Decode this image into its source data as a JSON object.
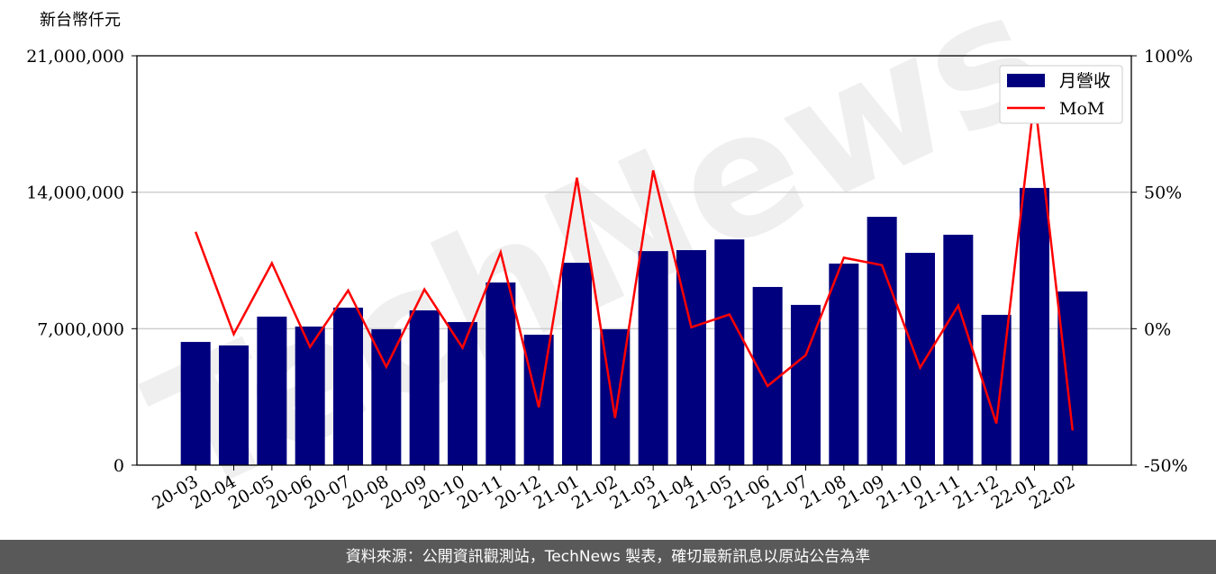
{
  "chart_data": {
    "type": "bar-line",
    "y_label": "新台幣仟元",
    "watermark": "TechNews",
    "categories": [
      "20-03",
      "20-04",
      "20-05",
      "20-06",
      "20-07",
      "20-08",
      "20-09",
      "20-10",
      "20-11",
      "20-12",
      "21-01",
      "21-02",
      "21-03",
      "21-04",
      "21-05",
      "21-06",
      "21-07",
      "21-08",
      "21-09",
      "21-10",
      "21-11",
      "21-12",
      "22-01",
      "22-02"
    ],
    "series": [
      {
        "name": "月營收",
        "type": "bar",
        "color": "#00007f",
        "values": [
          6320000,
          6140000,
          7620000,
          7110000,
          8080000,
          6970000,
          7940000,
          7340000,
          9370000,
          6690000,
          10380000,
          6970000,
          10980000,
          11030000,
          11580000,
          9140000,
          8220000,
          10340000,
          12740000,
          10890000,
          11820000,
          7710000,
          14220000,
          8910000
        ]
      },
      {
        "name": "MoM",
        "type": "line",
        "axis": "y2",
        "color": "#ff0000",
        "values": [
          35.5,
          -2,
          24,
          -6.7,
          14,
          -14,
          14.4,
          -7,
          28,
          -28.8,
          55.3,
          -32.7,
          58,
          0.5,
          5.2,
          -21,
          -9.7,
          26,
          23.3,
          -14.3,
          8.5,
          -34.7,
          84.6,
          -37.3
        ]
      }
    ],
    "ylim": [
      0,
      21000000
    ],
    "yticks": [
      0,
      {
        "value": 7000000,
        "label": "7,000,000"
      },
      {
        "value": 14000000,
        "label": "14,000,000"
      },
      {
        "value": 21000000,
        "label": "21,000,000"
      }
    ],
    "y2lim": [
      -50,
      100
    ],
    "y2ticks": [
      {
        "value": -50,
        "label": "-50%"
      },
      {
        "value": 0,
        "label": "0%"
      },
      {
        "value": 50,
        "label": "50%"
      },
      {
        "value": 100,
        "label": "100%"
      }
    ],
    "grid": true,
    "legend": "upper right"
  },
  "footer": "資料來源：公開資訊觀測站，TechNews 製表，確切最新訊息以原站公告為準"
}
